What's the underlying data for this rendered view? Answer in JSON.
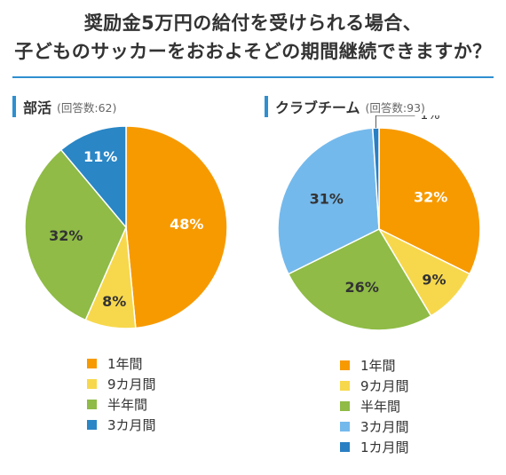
{
  "title": {
    "line1": "奨励金5万円の給付を受けられる場合、",
    "line2": "子どものサッカーをおおよそどの期間継続できますか？"
  },
  "colors": {
    "one_year": "#f79a00",
    "nine_months": "#f7d84c",
    "half_year": "#8fbb46",
    "three_months_left": "#2a86c5",
    "three_months_right": "#74b9ec",
    "one_month": "#2a7fc2",
    "accent": "#2f8fd0"
  },
  "chart_data": [
    {
      "type": "pie",
      "title": "部活",
      "subtitle": "(回答数:62)",
      "slices": [
        {
          "label": "1年間",
          "value": 48,
          "display": "48%",
          "color": "#f79a00"
        },
        {
          "label": "9カ月間",
          "value": 8,
          "display": "8%",
          "color": "#f7d84c"
        },
        {
          "label": "半年間",
          "value": 32,
          "display": "32%",
          "color": "#8fbb46"
        },
        {
          "label": "3カ月間",
          "value": 11,
          "display": "11%",
          "color": "#2a86c5"
        }
      ],
      "legend_position": "bottom"
    },
    {
      "type": "pie",
      "title": "クラブチーム",
      "subtitle": "(回答数:93)",
      "slices": [
        {
          "label": "1年間",
          "value": 32,
          "display": "32%",
          "color": "#f79a00"
        },
        {
          "label": "9カ月間",
          "value": 9,
          "display": "9%",
          "color": "#f7d84c"
        },
        {
          "label": "半年間",
          "value": 26,
          "display": "26%",
          "color": "#8fbb46"
        },
        {
          "label": "3カ月間",
          "value": 31,
          "display": "31%",
          "color": "#74b9ec"
        },
        {
          "label": "1カ月間",
          "value": 1,
          "display": "1%",
          "color": "#2a7fc2"
        }
      ],
      "legend_position": "bottom"
    }
  ]
}
